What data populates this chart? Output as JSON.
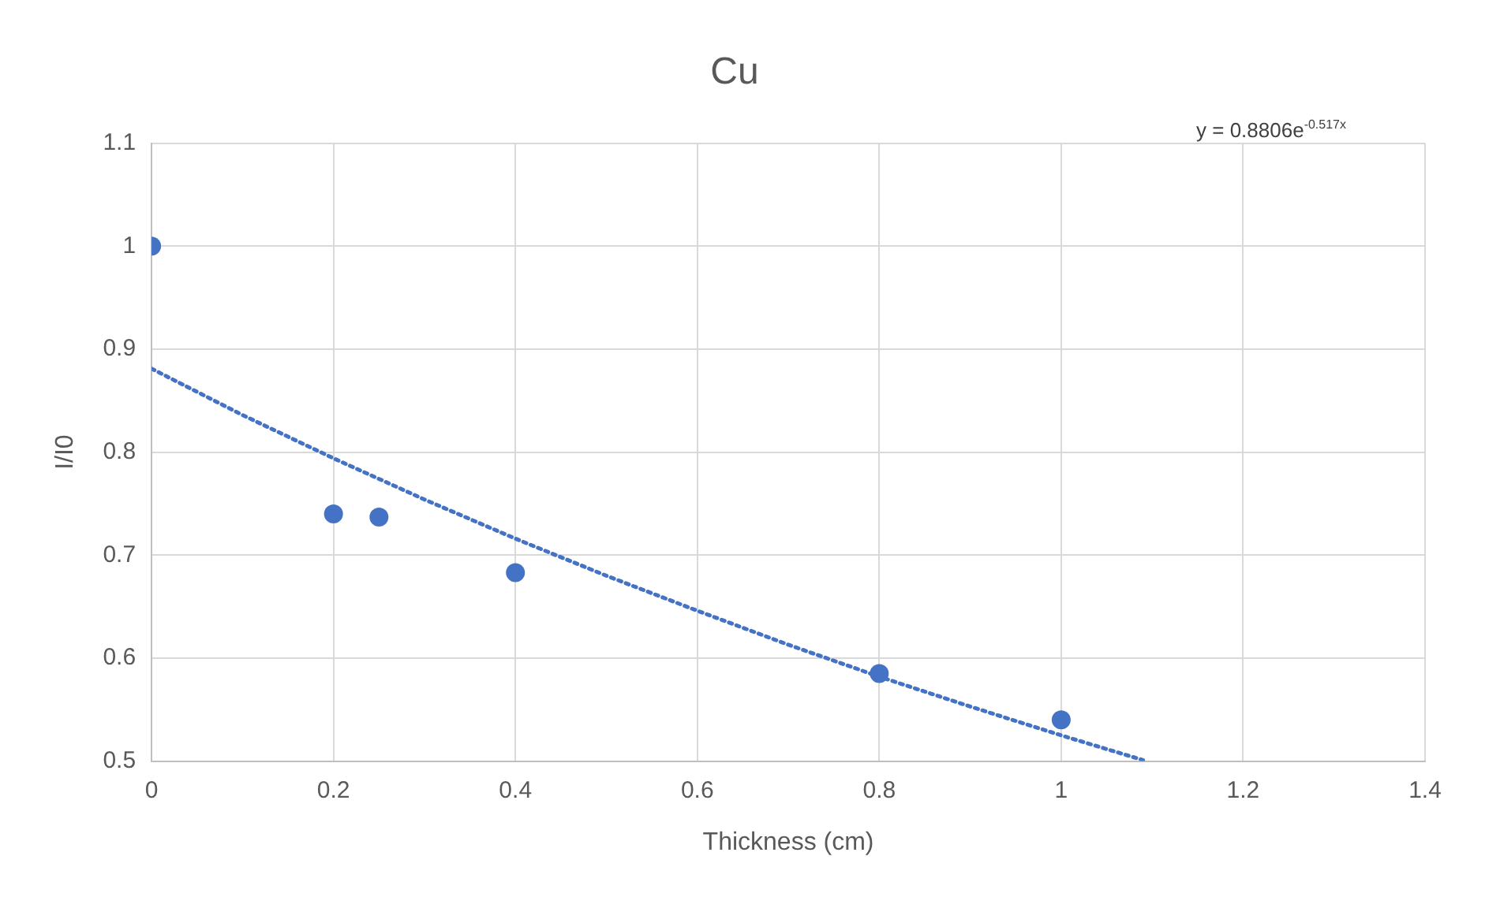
{
  "chart_data": {
    "type": "scatter",
    "title": "Cu",
    "xlabel": "Thickness (cm)",
    "ylabel": "I/I0",
    "xlim": [
      0,
      1.4
    ],
    "xticks": [
      0,
      0.2,
      0.4,
      0.6,
      0.8,
      1,
      1.2,
      1.4
    ],
    "ylim": [
      0.5,
      1.1
    ],
    "yticks": [
      0.5,
      0.6,
      0.7,
      0.8,
      0.9,
      1,
      1.1
    ],
    "grid": true,
    "legend": false,
    "annotations": [
      "y = 0.8806e$^{-0.517x}$"
    ],
    "series": [
      {
        "type": "scatter",
        "color": "#4472c4",
        "marker": "circle",
        "x": [
          0,
          0.2,
          0.25,
          0.4,
          0.8,
          1
        ],
        "values": [
          1,
          0.74,
          0.737,
          0.683,
          0.585,
          0.54
        ]
      },
      {
        "type": "line",
        "color": "#4472c4",
        "marker": "none",
        "line_style": "dotted",
        "x": [
          0,
          0.1,
          0.2,
          0.3,
          0.4,
          0.5,
          0.6,
          0.7,
          0.8,
          0.9,
          1,
          1.09
        ],
        "values": [
          0.881,
          0.836,
          0.794,
          0.754,
          0.716,
          0.68,
          0.646,
          0.613,
          0.582,
          0.553,
          0.525,
          0.501
        ]
      }
    ]
  }
}
